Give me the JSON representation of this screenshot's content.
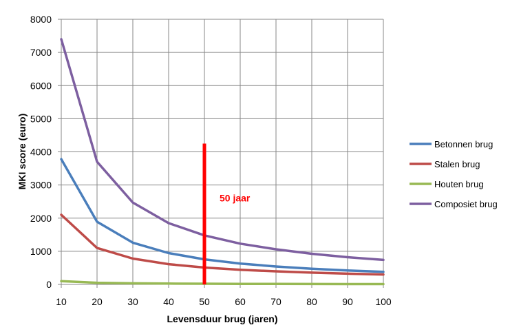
{
  "chart_data": {
    "type": "line",
    "title": "",
    "xlabel": "Levensduur brug (jaren)",
    "ylabel": "MKI score (euro)",
    "x": [
      10,
      20,
      30,
      40,
      50,
      60,
      70,
      80,
      90,
      100
    ],
    "xlim": [
      10,
      100
    ],
    "ylim": [
      0,
      8000
    ],
    "yticks": [
      0,
      1000,
      2000,
      3000,
      4000,
      5000,
      6000,
      7000,
      8000
    ],
    "grid": "vertical and horizontal",
    "legend_position": "right",
    "series": [
      {
        "name": "Betonnen brug",
        "color": "#4a7ebb",
        "values": [
          3780,
          1890,
          1260,
          945,
          756,
          630,
          540,
          473,
          420,
          378
        ]
      },
      {
        "name": "Stalen brug",
        "color": "#be4b48",
        "values": [
          2100,
          1100,
          780,
          610,
          510,
          440,
          395,
          355,
          325,
          300
        ]
      },
      {
        "name": "Houten brug",
        "color": "#98b954",
        "values": [
          100,
          50,
          33,
          25,
          20,
          17,
          14,
          13,
          11,
          10
        ]
      },
      {
        "name": "Composiet brug",
        "color": "#7d5fa0",
        "values": [
          7400,
          3700,
          2470,
          1850,
          1480,
          1230,
          1060,
          925,
          820,
          740
        ]
      }
    ],
    "annotation": {
      "label": "50 jaar",
      "x": 50,
      "y_from": 0,
      "y_to": 4250,
      "color": "#ff0000"
    }
  }
}
